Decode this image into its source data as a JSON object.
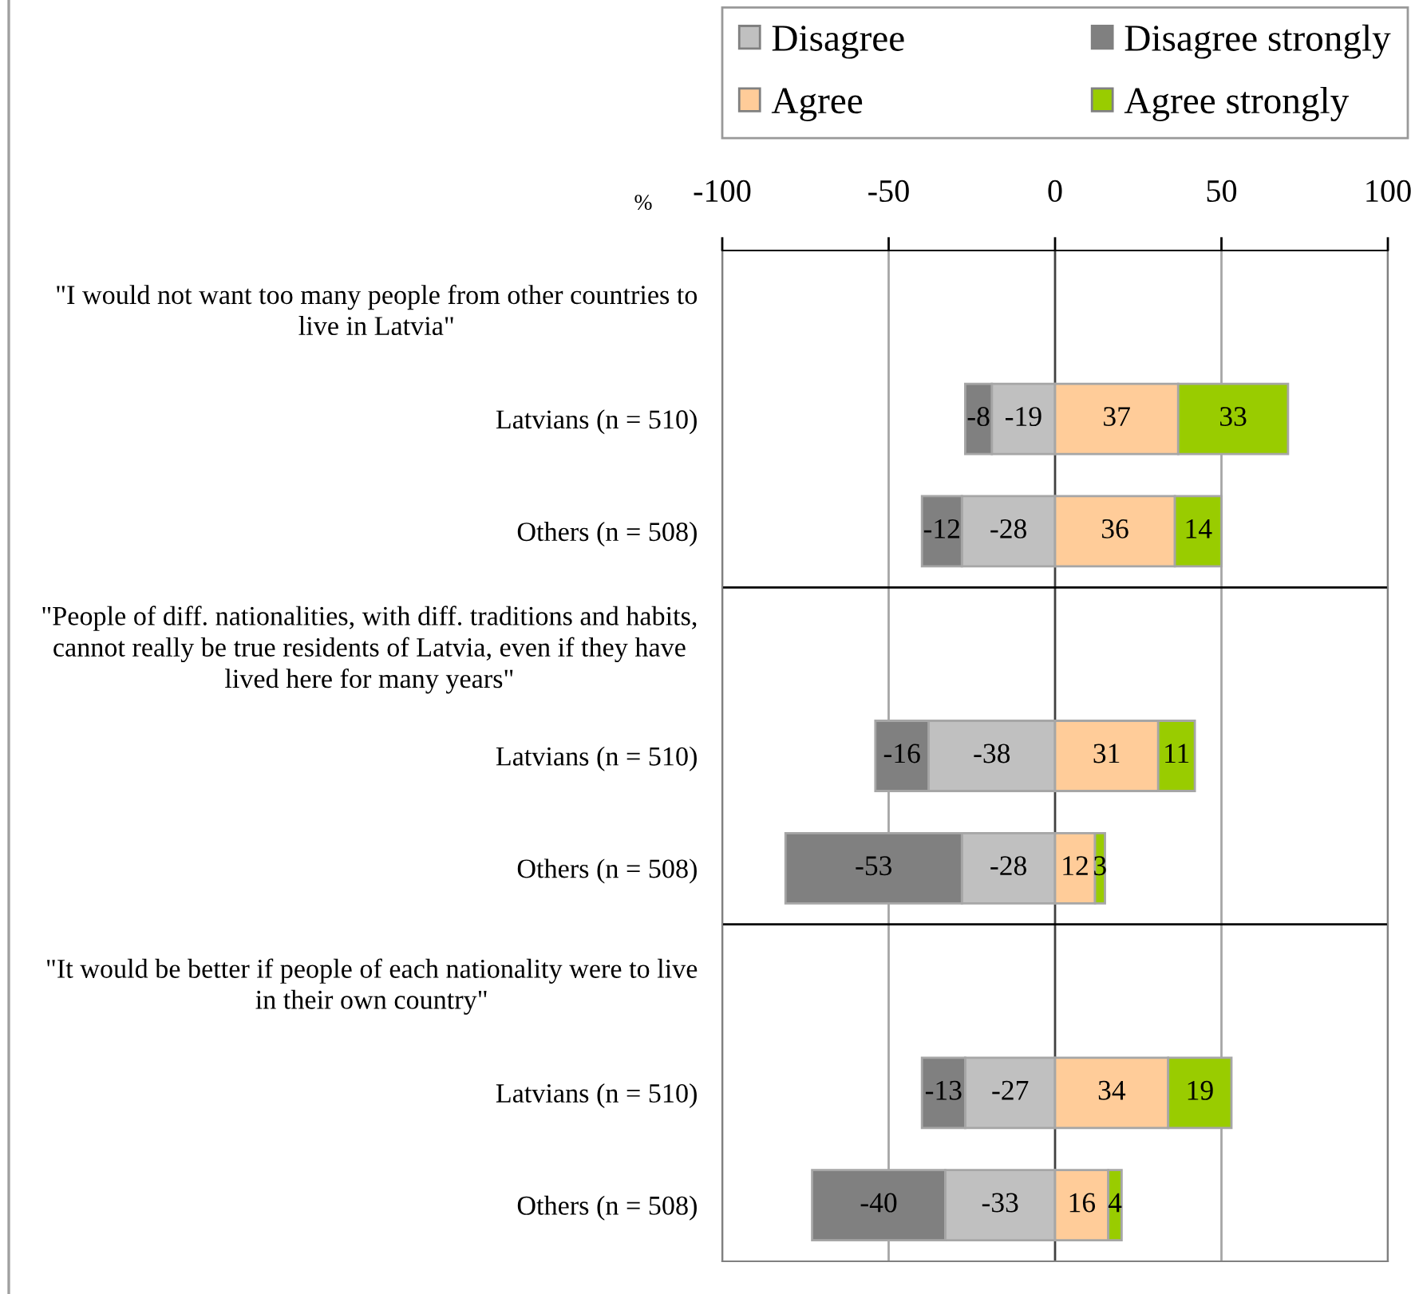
{
  "chart_data": {
    "type": "bar",
    "orientation": "horizontal",
    "stacked": true,
    "xlabel": "%",
    "categories": [
      "\"I would not want too many people from other countries to\nlive in Latvia\"",
      "Latvians (n = 510)",
      "Others (n = 508)",
      "\"People of diff. nationalities, with diff. traditions and habits,\ncannot really be true residents of Latvia, even if they have\nlived here for many years\"",
      "Latvians (n = 510)",
      "Others (n = 508)",
      "\"It would be better if people of each nationality were to live\nin their own country\"",
      "Latvians (n = 510)",
      "Others (n = 508)"
    ],
    "series": [
      {
        "name": "Disagree",
        "color": "#c0c0c0",
        "values": [
          null,
          -19,
          -28,
          null,
          -38,
          -28,
          null,
          -27,
          -33
        ]
      },
      {
        "name": "Disagree strongly",
        "color": "#808080",
        "values": [
          null,
          -8,
          -12,
          null,
          -16,
          -53,
          null,
          -13,
          -40
        ]
      },
      {
        "name": "Agree",
        "color": "#ffcc99",
        "values": [
          null,
          37,
          36,
          null,
          31,
          12,
          null,
          34,
          16
        ]
      },
      {
        "name": "Agree strongly",
        "color": "#99cc00",
        "values": [
          null,
          33,
          14,
          null,
          11,
          3,
          null,
          19,
          4
        ]
      }
    ],
    "xlim": [
      -100,
      100
    ],
    "xticks": [
      -100,
      -50,
      0,
      50,
      100
    ],
    "grid": true,
    "legend": "top right",
    "data_labels": true
  }
}
